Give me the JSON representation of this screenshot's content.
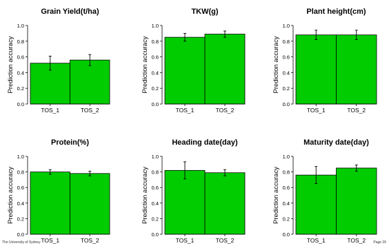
{
  "footer": {
    "left": "The University of Sydney",
    "right": "Page 26"
  },
  "style": {
    "bar_color": "#00cc00",
    "bar_edge": "#000000"
  },
  "chart_data": [
    {
      "type": "bar",
      "title": "Grain Yield(t/ha)",
      "xlabel": "",
      "ylabel": "Prediction accuracy",
      "categories": [
        "TOS_1",
        "TOS_2"
      ],
      "values": [
        0.52,
        0.56
      ],
      "errors": [
        0.09,
        0.07
      ],
      "ylim": [
        0,
        1
      ],
      "yticks": [
        "0.0",
        "0.2",
        "0.4",
        "0.6",
        "0.8",
        "1.0"
      ],
      "grid": false
    },
    {
      "type": "bar",
      "title": "TKW(g)",
      "xlabel": "",
      "ylabel": "Prediction accuracy",
      "categories": [
        "TOS_1",
        "TOS_2"
      ],
      "values": [
        0.85,
        0.89
      ],
      "errors": [
        0.05,
        0.04
      ],
      "ylim": [
        0,
        1
      ],
      "yticks": [
        "0.0",
        "0.2",
        "0.4",
        "0.6",
        "0.8",
        "1.0"
      ],
      "grid": false
    },
    {
      "type": "bar",
      "title": "Plant height(cm)",
      "xlabel": "",
      "ylabel": "Prediction accuracy",
      "categories": [
        "TOS_1",
        "TOS_2"
      ],
      "values": [
        0.88,
        0.88
      ],
      "errors": [
        0.06,
        0.06
      ],
      "ylim": [
        0,
        1
      ],
      "yticks": [
        "0.0",
        "0.2",
        "0.4",
        "0.6",
        "0.8",
        "1.0"
      ],
      "grid": false
    },
    {
      "type": "bar",
      "title": "Protein(%)",
      "xlabel": "",
      "ylabel": "Prediction accuracy",
      "categories": [
        "TOS_1",
        "TOS_2"
      ],
      "values": [
        0.8,
        0.78
      ],
      "errors": [
        0.03,
        0.03
      ],
      "ylim": [
        0,
        1
      ],
      "yticks": [
        "0.0",
        "0.2",
        "0.4",
        "0.6",
        "0.8",
        "1.0"
      ],
      "grid": false
    },
    {
      "type": "bar",
      "title": "Heading date(day)",
      "xlabel": "",
      "ylabel": "Prediction accuracy",
      "categories": [
        "TOS_1",
        "TOS_2"
      ],
      "values": [
        0.82,
        0.79
      ],
      "errors": [
        0.11,
        0.04
      ],
      "ylim": [
        0,
        1
      ],
      "yticks": [
        "0.0",
        "0.2",
        "0.4",
        "0.6",
        "0.8",
        "1.0"
      ],
      "grid": false
    },
    {
      "type": "bar",
      "title": "Maturity date(day)",
      "xlabel": "",
      "ylabel": "Prediction accuracy",
      "categories": [
        "TOS_1",
        "TOS_2"
      ],
      "values": [
        0.76,
        0.85
      ],
      "errors": [
        0.11,
        0.04
      ],
      "ylim": [
        0,
        1
      ],
      "yticks": [
        "0.0",
        "0.2",
        "0.4",
        "0.6",
        "0.8",
        "1.0"
      ],
      "grid": false
    }
  ]
}
